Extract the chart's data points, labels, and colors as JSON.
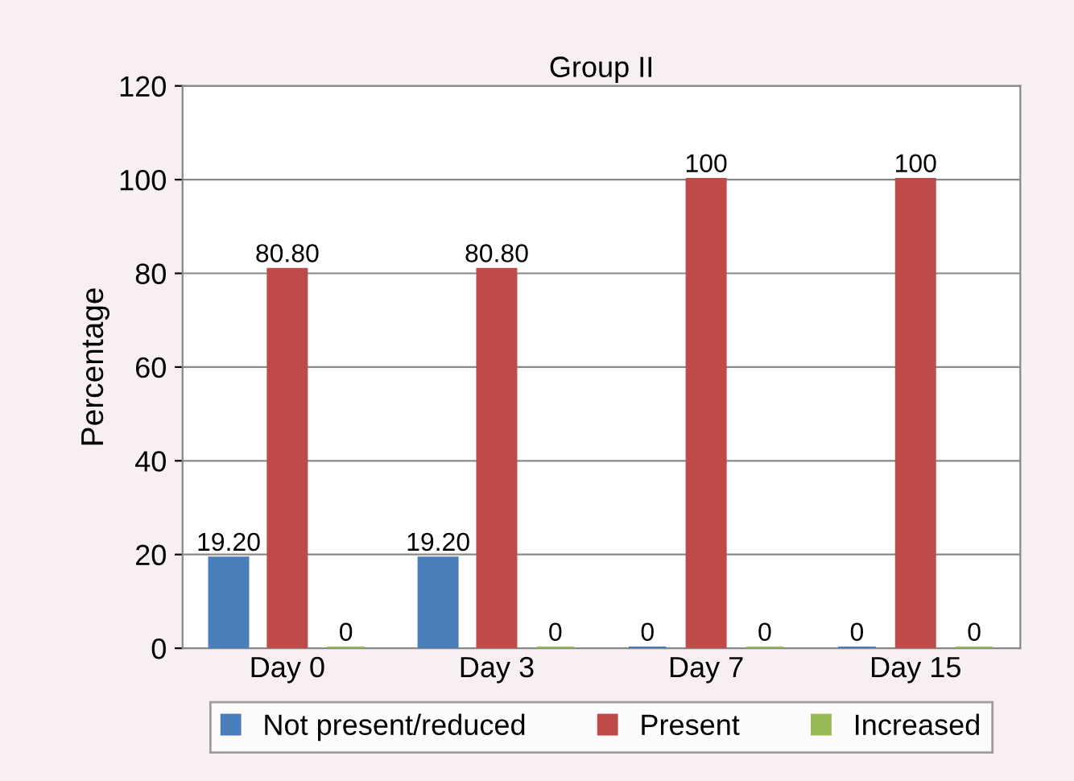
{
  "chart_data": {
    "type": "bar",
    "title": "Group II",
    "ylabel": "Percentage",
    "categories": [
      "Day 0",
      "Day 3",
      "Day 7",
      "Day 15"
    ],
    "series": [
      {
        "name": "Not present/reduced",
        "color": "#4a7ebb",
        "values": [
          19.2,
          19.2,
          0,
          0
        ],
        "value_labels": [
          "19.20",
          "19.20",
          "0",
          "0"
        ]
      },
      {
        "name": "Present",
        "color": "#be4b48",
        "values": [
          80.8,
          80.8,
          100,
          100
        ],
        "value_labels": [
          "80.80",
          "80.80",
          "100",
          "100"
        ]
      },
      {
        "name": "Increased",
        "color": "#98b954",
        "values": [
          0,
          0,
          0,
          0
        ],
        "value_labels": [
          "0",
          "0",
          "0",
          "0"
        ]
      }
    ],
    "ylim": [
      0,
      120
    ],
    "yticks": [
      0,
      20,
      40,
      60,
      80,
      100,
      120
    ],
    "grid": "y",
    "legend": "bottom"
  }
}
